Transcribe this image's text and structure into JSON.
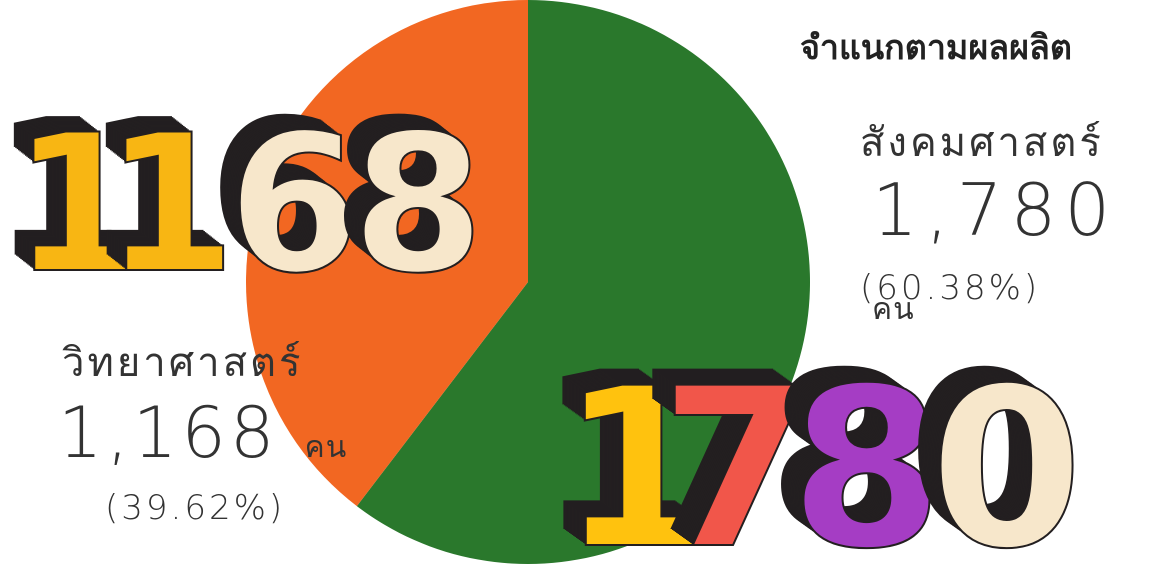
{
  "chart_data": {
    "type": "pie",
    "title": "จำแนกตามผลผลิต",
    "slices": [
      {
        "name": "สังคมศาสตร์",
        "value": 1780,
        "value_label": "1,780",
        "unit": "คน",
        "percent_label": "(60.38%)",
        "color": "#2a782c"
      },
      {
        "name": "วิทยาศาสตร์",
        "value": 1168,
        "value_label": "1,168",
        "unit": "คน",
        "percent_label": "(39.62%)",
        "color": "#f26722"
      }
    ]
  },
  "big_numbers": {
    "science": {
      "text": "1168",
      "digit_colors": [
        "#f8b613",
        "#f8b613",
        "#f7e7cb",
        "#f7e7cb"
      ]
    },
    "social": {
      "text": "1780",
      "digit_colors": [
        "#ffc20e",
        "#f1564a",
        "#a53dc4",
        "#f7e7cb"
      ]
    }
  },
  "shadow_color": "#231f20"
}
